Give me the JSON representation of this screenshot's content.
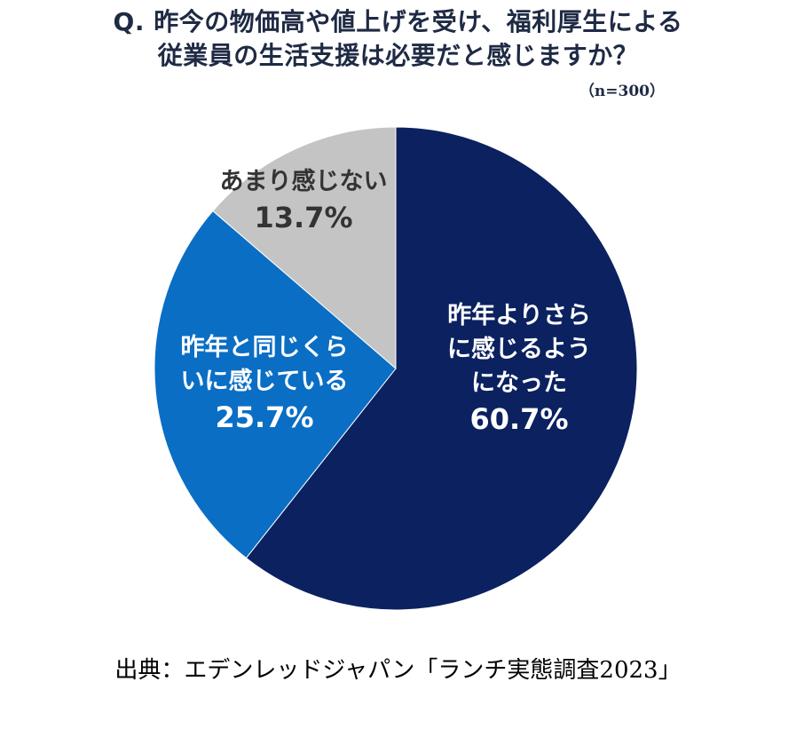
{
  "title": {
    "line1": "Q. 昨今の物価高や値上げを受け、福利厚生による",
    "line2": "従業員の生活支援は必要だと感じますか？"
  },
  "sample_size": "（n=300）",
  "source": "出典：エデンレッドジャパン「ランチ実態調査2023」",
  "chart_data": {
    "type": "pie",
    "title": "Q. 昨今の物価高や値上げを受け、福利厚生による従業員の生活支援は必要だと感じますか？",
    "start_angle_deg": 0,
    "direction": "clockwise",
    "slices": [
      {
        "label_lines": [
          "昨年よりさら",
          "に感じるよう",
          "になった"
        ],
        "value": 60.7,
        "value_text": "60.7%",
        "color": "#0b2160",
        "label_color": "#ffffff"
      },
      {
        "label_lines": [
          "昨年と同じくら",
          "いに感じている"
        ],
        "value": 25.7,
        "value_text": "25.7%",
        "color": "#0a6ec4",
        "label_color": "#ffffff"
      },
      {
        "label_lines": [
          "あまり感じない"
        ],
        "value": 13.7,
        "value_text": "13.7%",
        "color": "#c4c4c4",
        "label_color": "#333333"
      }
    ]
  }
}
